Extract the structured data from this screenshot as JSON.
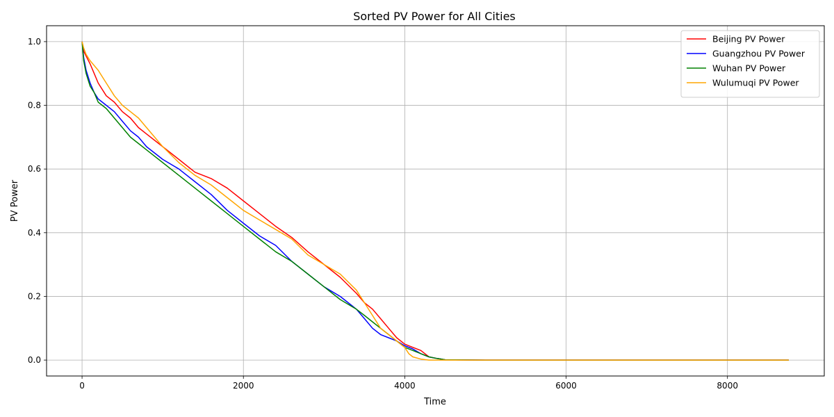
{
  "chart_data": {
    "type": "line",
    "title": "Sorted PV Power for All Cities",
    "xlabel": "Time",
    "ylabel": "PV Power",
    "xlim": [
      -440,
      9200
    ],
    "ylim": [
      -0.05,
      1.05
    ],
    "xticks": [
      0,
      2000,
      4000,
      6000,
      8000
    ],
    "xtick_labels": [
      "0",
      "2000",
      "4000",
      "6000",
      "8000"
    ],
    "yticks": [
      0.0,
      0.2,
      0.4,
      0.6,
      0.8,
      1.0
    ],
    "ytick_labels": [
      "0.0",
      "0.2",
      "0.4",
      "0.6",
      "0.8",
      "1.0"
    ],
    "grid": true,
    "legend_position": "top-right",
    "series": [
      {
        "name": "Beijing PV Power",
        "color": "#ff0000",
        "points": [
          [
            0,
            1.0
          ],
          [
            20,
            0.97
          ],
          [
            60,
            0.95
          ],
          [
            100,
            0.93
          ],
          [
            150,
            0.9
          ],
          [
            200,
            0.87
          ],
          [
            300,
            0.83
          ],
          [
            400,
            0.81
          ],
          [
            500,
            0.78
          ],
          [
            600,
            0.76
          ],
          [
            700,
            0.73
          ],
          [
            800,
            0.71
          ],
          [
            1000,
            0.67
          ],
          [
            1200,
            0.63
          ],
          [
            1400,
            0.59
          ],
          [
            1600,
            0.57
          ],
          [
            1800,
            0.54
          ],
          [
            2000,
            0.5
          ],
          [
            2200,
            0.46
          ],
          [
            2400,
            0.42
          ],
          [
            2600,
            0.385
          ],
          [
            2800,
            0.34
          ],
          [
            3000,
            0.3
          ],
          [
            3200,
            0.26
          ],
          [
            3400,
            0.21
          ],
          [
            3500,
            0.18
          ],
          [
            3600,
            0.16
          ],
          [
            3700,
            0.13
          ],
          [
            3800,
            0.1
          ],
          [
            3900,
            0.07
          ],
          [
            4000,
            0.05
          ],
          [
            4100,
            0.04
          ],
          [
            4200,
            0.03
          ],
          [
            4300,
            0.01
          ],
          [
            4400,
            0.005
          ],
          [
            4500,
            0.001
          ],
          [
            5000,
            0.0
          ],
          [
            6000,
            0.0
          ],
          [
            7000,
            0.0
          ],
          [
            8000,
            0.0
          ],
          [
            8760,
            0.0
          ]
        ]
      },
      {
        "name": "Guangzhou PV Power",
        "color": "#0000ff",
        "points": [
          [
            0,
            1.0
          ],
          [
            20,
            0.95
          ],
          [
            50,
            0.91
          ],
          [
            100,
            0.87
          ],
          [
            150,
            0.84
          ],
          [
            200,
            0.82
          ],
          [
            300,
            0.8
          ],
          [
            400,
            0.78
          ],
          [
            500,
            0.75
          ],
          [
            600,
            0.72
          ],
          [
            700,
            0.7
          ],
          [
            800,
            0.67
          ],
          [
            1000,
            0.63
          ],
          [
            1200,
            0.6
          ],
          [
            1400,
            0.56
          ],
          [
            1600,
            0.52
          ],
          [
            1800,
            0.47
          ],
          [
            2000,
            0.43
          ],
          [
            2200,
            0.39
          ],
          [
            2400,
            0.36
          ],
          [
            2600,
            0.31
          ],
          [
            2800,
            0.27
          ],
          [
            3000,
            0.23
          ],
          [
            3200,
            0.2
          ],
          [
            3400,
            0.16
          ],
          [
            3500,
            0.13
          ],
          [
            3600,
            0.1
          ],
          [
            3700,
            0.08
          ],
          [
            3800,
            0.07
          ],
          [
            3900,
            0.06
          ],
          [
            4000,
            0.045
          ],
          [
            4100,
            0.035
          ],
          [
            4200,
            0.02
          ],
          [
            4300,
            0.01
          ],
          [
            4400,
            0.005
          ],
          [
            4500,
            0.001
          ],
          [
            5000,
            0.0
          ],
          [
            6000,
            0.0
          ],
          [
            7000,
            0.0
          ],
          [
            8000,
            0.0
          ],
          [
            8760,
            0.0
          ]
        ]
      },
      {
        "name": "Wuhan PV Power",
        "color": "#008000",
        "points": [
          [
            0,
            1.0
          ],
          [
            20,
            0.94
          ],
          [
            50,
            0.9
          ],
          [
            100,
            0.86
          ],
          [
            150,
            0.84
          ],
          [
            200,
            0.81
          ],
          [
            300,
            0.79
          ],
          [
            400,
            0.76
          ],
          [
            500,
            0.73
          ],
          [
            600,
            0.7
          ],
          [
            700,
            0.68
          ],
          [
            800,
            0.66
          ],
          [
            1000,
            0.62
          ],
          [
            1200,
            0.58
          ],
          [
            1400,
            0.54
          ],
          [
            1600,
            0.5
          ],
          [
            1800,
            0.46
          ],
          [
            2000,
            0.42
          ],
          [
            2200,
            0.38
          ],
          [
            2400,
            0.34
          ],
          [
            2600,
            0.31
          ],
          [
            2800,
            0.27
          ],
          [
            3000,
            0.23
          ],
          [
            3200,
            0.19
          ],
          [
            3400,
            0.16
          ],
          [
            3500,
            0.14
          ],
          [
            3600,
            0.12
          ],
          [
            3700,
            0.1
          ],
          [
            3800,
            0.08
          ],
          [
            3900,
            0.06
          ],
          [
            4000,
            0.04
          ],
          [
            4100,
            0.03
          ],
          [
            4200,
            0.02
          ],
          [
            4300,
            0.01
          ],
          [
            4400,
            0.005
          ],
          [
            4500,
            0.001
          ],
          [
            5000,
            0.0
          ],
          [
            6000,
            0.0
          ],
          [
            7000,
            0.0
          ],
          [
            8000,
            0.0
          ],
          [
            8760,
            0.0
          ]
        ]
      },
      {
        "name": "Wulumuqi PV Power",
        "color": "#ffa500",
        "points": [
          [
            0,
            1.0
          ],
          [
            20,
            0.98
          ],
          [
            50,
            0.96
          ],
          [
            100,
            0.94
          ],
          [
            200,
            0.91
          ],
          [
            300,
            0.87
          ],
          [
            400,
            0.83
          ],
          [
            500,
            0.8
          ],
          [
            600,
            0.78
          ],
          [
            700,
            0.76
          ],
          [
            800,
            0.73
          ],
          [
            1000,
            0.67
          ],
          [
            1200,
            0.62
          ],
          [
            1400,
            0.58
          ],
          [
            1600,
            0.55
          ],
          [
            1800,
            0.51
          ],
          [
            2000,
            0.47
          ],
          [
            2200,
            0.44
          ],
          [
            2400,
            0.41
          ],
          [
            2600,
            0.38
          ],
          [
            2800,
            0.33
          ],
          [
            3000,
            0.3
          ],
          [
            3200,
            0.27
          ],
          [
            3400,
            0.22
          ],
          [
            3500,
            0.18
          ],
          [
            3600,
            0.14
          ],
          [
            3700,
            0.1
          ],
          [
            3800,
            0.08
          ],
          [
            3900,
            0.06
          ],
          [
            4000,
            0.04
          ],
          [
            4050,
            0.02
          ],
          [
            4100,
            0.01
          ],
          [
            4200,
            0.003
          ],
          [
            4300,
            0.0
          ],
          [
            5000,
            0.0
          ],
          [
            6000,
            0.0
          ],
          [
            7000,
            0.0
          ],
          [
            8000,
            0.0
          ],
          [
            8760,
            0.0
          ]
        ]
      }
    ]
  }
}
